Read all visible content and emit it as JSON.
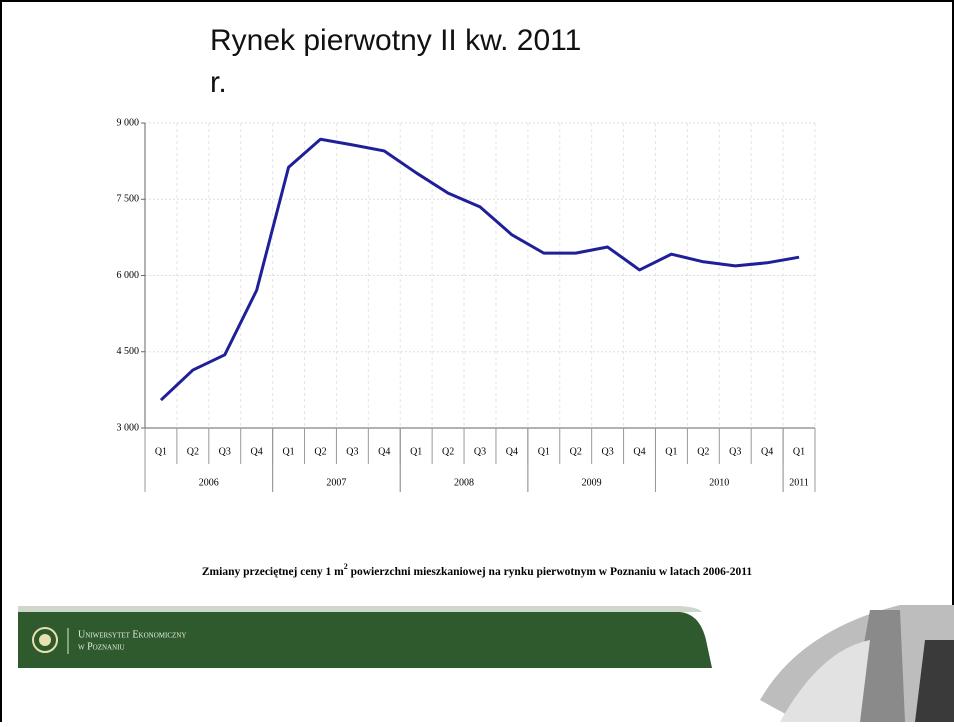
{
  "slide": {
    "title": "Rynek pierwotny II kw. 2011 r.",
    "caption": {
      "before": "Zmiany przeciętnej ceny 1 m",
      "sup": "2",
      "after": " powierzchni mieszkaniowej na rynku pierwotnym w Poznaniu w latach 2006-2011"
    },
    "footer": {
      "line1": "Uniwersytet Ekonomiczny",
      "line2": "w Poznaniu"
    }
  },
  "chart_data": {
    "type": "line",
    "categories": [
      "Q1",
      "Q2",
      "Q3",
      "Q4",
      "Q1",
      "Q2",
      "Q3",
      "Q4",
      "Q1",
      "Q2",
      "Q3",
      "Q4",
      "Q1",
      "Q2",
      "Q3",
      "Q4",
      "Q1",
      "Q2",
      "Q3",
      "Q4",
      "Q1"
    ],
    "groups": [
      {
        "label": "2006",
        "count": 4
      },
      {
        "label": "2007",
        "count": 4
      },
      {
        "label": "2008",
        "count": 4
      },
      {
        "label": "2009",
        "count": 4
      },
      {
        "label": "2010",
        "count": 4
      },
      {
        "label": "2011",
        "count": 1
      }
    ],
    "values": [
      3550,
      4140,
      4440,
      5710,
      8130,
      8680,
      8570,
      8450,
      8020,
      7620,
      7350,
      6800,
      6440,
      6440,
      6560,
      6110,
      6420,
      6270,
      6190,
      6250,
      6360
    ],
    "color": "#1f1f99",
    "ylim": [
      3000,
      9000
    ],
    "yticks": [
      {
        "value": 3000,
        "label": "3 000"
      },
      {
        "value": 4500,
        "label": "4 500"
      },
      {
        "value": 6000,
        "label": "6 000"
      },
      {
        "value": 7500,
        "label": "7 500"
      },
      {
        "value": 9000,
        "label": "9 000"
      }
    ],
    "grid": true
  }
}
